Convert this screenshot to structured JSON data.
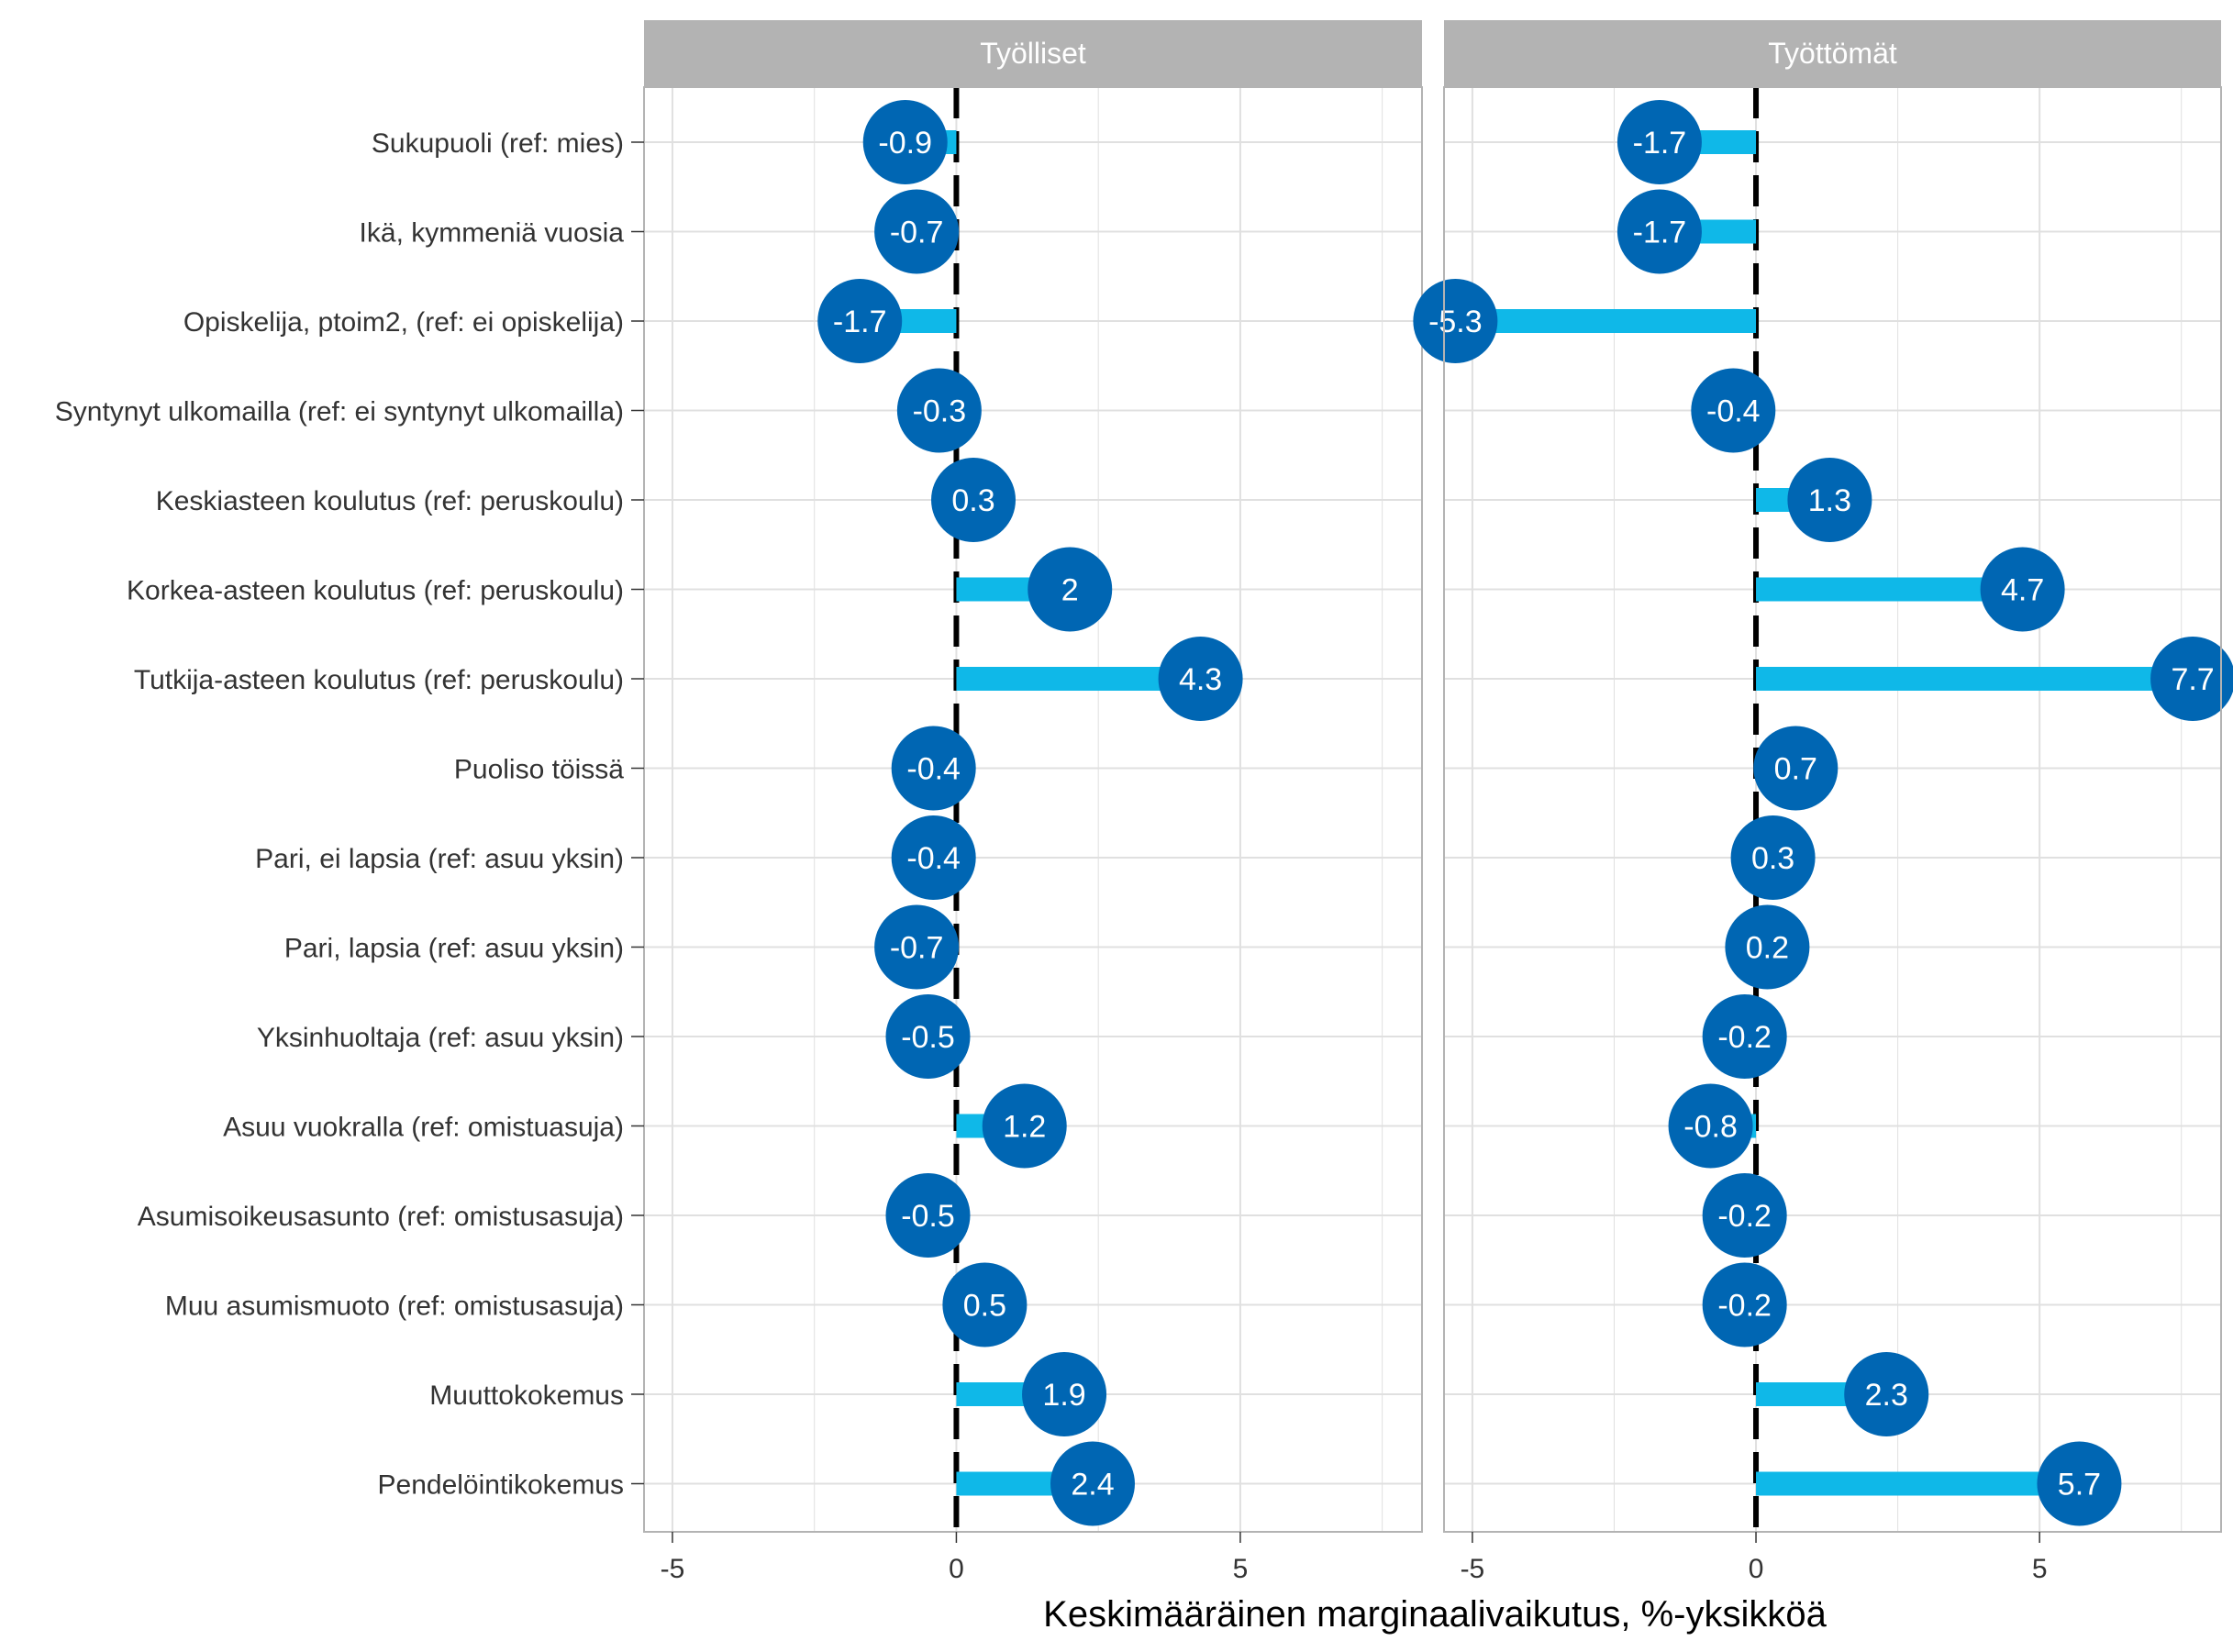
{
  "chart_data": {
    "type": "lollipop",
    "xlabel": "Keskimääräinen marginaalivaikutus, %-yksikköä",
    "xlim": [
      -5.5,
      8.2
    ],
    "xticks": [
      -5,
      0,
      5
    ],
    "grid": true,
    "reference_line": 0,
    "categories": [
      "Sukupuoli (ref: mies)",
      "Ikä, kymmeniä vuosia",
      "Opiskelija, ptoim2, (ref: ei opiskelija)",
      "Syntynyt ulkomailla (ref: ei syntynyt ulkomailla)",
      "Keskiasteen koulutus (ref: peruskoulu)",
      "Korkea-asteen koulutus (ref: peruskoulu)",
      "Tutkija-asteen koulutus (ref: peruskoulu)",
      "Puoliso töissä",
      "Pari, ei lapsia (ref: asuu yksin)",
      "Pari, lapsia (ref: asuu yksin)",
      "Yksinhuoltaja (ref: asuu yksin)",
      "Asuu vuokralla (ref: omistuasuja)",
      "Asumisoikeusasunto (ref: omistusasuja)",
      "Muu asumismuoto (ref: omistusasuja)",
      "Muuttokokemus",
      "Pendelöintikokemus"
    ],
    "panels": [
      {
        "name": "Työlliset",
        "values": [
          -0.9,
          -0.7,
          -1.7,
          -0.3,
          0.3,
          2,
          4.3,
          -0.4,
          -0.4,
          -0.7,
          -0.5,
          1.2,
          -0.5,
          0.5,
          1.9,
          2.4
        ]
      },
      {
        "name": "Työttömät",
        "values": [
          -1.7,
          -1.7,
          -5.3,
          -0.4,
          1.3,
          4.7,
          7.7,
          0.7,
          0.3,
          0.2,
          -0.2,
          -0.8,
          -0.2,
          -0.2,
          2.3,
          5.7
        ]
      }
    ],
    "colors": {
      "bar": "#0fb8e8",
      "point": "#0066b3",
      "point_label": "#ffffff",
      "strip": "#b3b3b3",
      "strip_text": "#ffffff",
      "grid": "#e0e0e0",
      "panel_border": "#b3b3b3",
      "zero_line": "#000000",
      "text": "#333333"
    }
  }
}
